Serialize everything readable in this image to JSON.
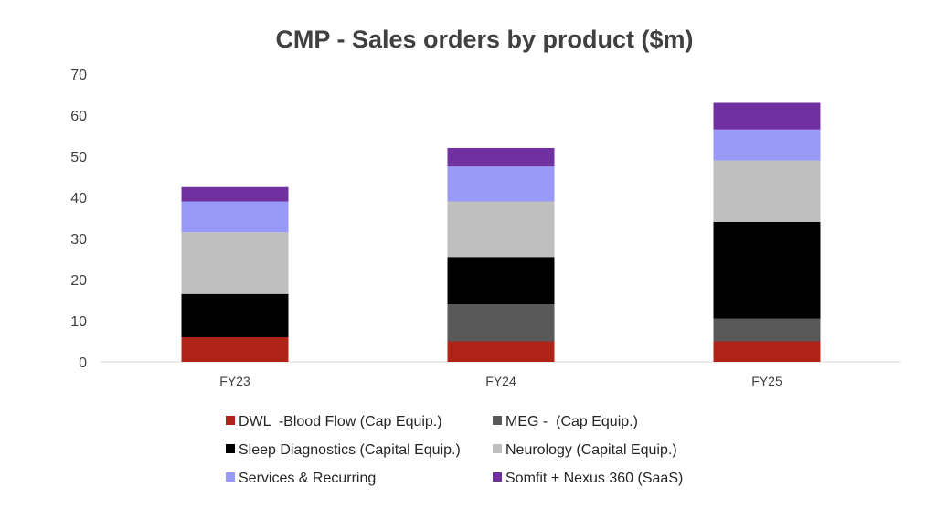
{
  "chart_data": {
    "type": "bar",
    "stacked": true,
    "title": "CMP - Sales orders by product ($m)",
    "xlabel": "",
    "ylabel": "",
    "ylim": [
      0,
      70
    ],
    "yticks": [
      "0",
      "10",
      "20",
      "30",
      "40",
      "50",
      "60",
      "70"
    ],
    "grid": false,
    "legend_position": "bottom",
    "categories": [
      "FY23",
      "FY24",
      "FY25"
    ],
    "series": [
      {
        "name": "DWL  -Blood Flow (Cap Equip.)",
        "color": "#b02418",
        "values": [
          6,
          5,
          5
        ]
      },
      {
        "name": "MEG -  (Cap Equip.)",
        "color": "#595959",
        "values": [
          0,
          9,
          5.5
        ]
      },
      {
        "name": "Sleep Diagnostics (Capital Equip.)",
        "color": "#000000",
        "values": [
          10.5,
          11.5,
          23.5
        ]
      },
      {
        "name": "Neurology (Capital Equip.)",
        "color": "#bfbfbf",
        "values": [
          15,
          13.5,
          15
        ]
      },
      {
        "name": "Services & Recurring",
        "color": "#9999f7",
        "values": [
          7.5,
          8.5,
          7.5
        ]
      },
      {
        "name": "Somfit + Nexus 360 (SaaS)",
        "color": "#7030a0",
        "values": [
          3.5,
          4.5,
          6.5
        ]
      }
    ]
  }
}
